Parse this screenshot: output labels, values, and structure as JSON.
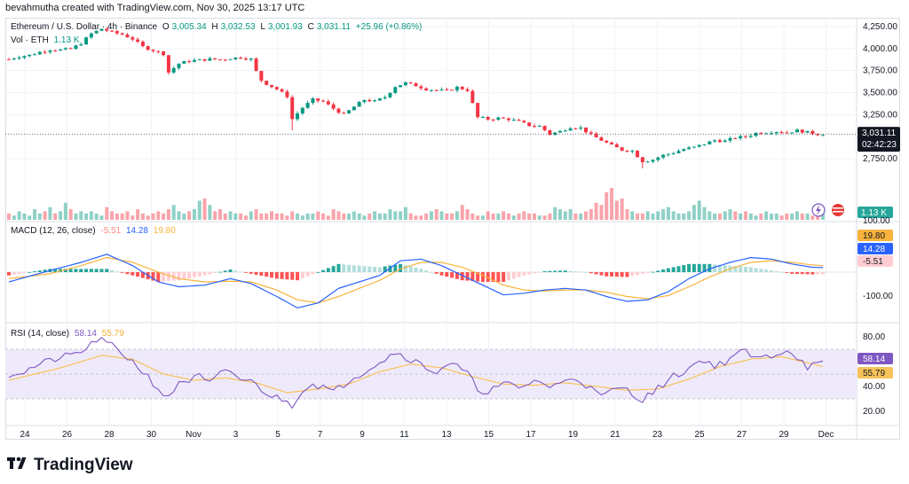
{
  "header": {
    "created_by": "bevahmutha created with TradingView.com, Nov 30, 2025 13:17 UTC"
  },
  "colors": {
    "up": "#089981",
    "down": "#f23645",
    "macd": "#2962ff",
    "signal": "#f7b33b",
    "rsi": "#7e57c2",
    "rsi_ma": "#f7c25a",
    "rsi_band": "#efeafb",
    "hist_up_strong": "#26a69a",
    "hist_up_weak": "#b2dfdb",
    "hist_down_strong": "#ff5252",
    "hist_down_weak": "#ffcdd2",
    "price_label_bg": "#131722",
    "vol_label_bg": "#26a69a"
  },
  "legend": {
    "symbol": "Ethereum / U.S. Dollar · 4h · Binance",
    "o_label": "O",
    "o_value": "3,005.34",
    "h_label": "H",
    "h_value": "3,032.53",
    "l_label": "L",
    "l_value": "3,001.93",
    "c_label": "C",
    "c_value": "3,031.11",
    "change": "+25.96 (+0.86%)",
    "vol_label": "Vol · ETH",
    "vol_value": "1.13 K",
    "macd_label": "MACD (12, 26, close)",
    "macd_hist": "-5.51",
    "macd_line": "14.28",
    "macd_signal": "19.80",
    "rsi_label": "RSI (14, close)",
    "rsi_value": "58.14",
    "rsi_ma": "55.79"
  },
  "price_axis": {
    "ticks": [
      "4,250.00",
      "4,000.00",
      "3,750.00",
      "3,500.00",
      "3,250.00",
      "2,750.00"
    ],
    "current_price": "3,031.11",
    "countdown": "02:42:23",
    "vol_badge": "1.13 K"
  },
  "macd_axis": {
    "ticks": [
      "100.00",
      "-100.00"
    ],
    "signal_badge": "19.80",
    "macd_badge": "14.28",
    "hist_badge": "-5.51"
  },
  "rsi_axis": {
    "ticks": [
      "80.00",
      "40.00",
      "20.00"
    ],
    "rsi_badge": "58.14",
    "ma_badge": "55.79"
  },
  "x_axis": {
    "labels": [
      "24",
      "26",
      "28",
      "30",
      "Nov",
      "3",
      "5",
      "7",
      "9",
      "11",
      "13",
      "15",
      "17",
      "19",
      "21",
      "23",
      "25",
      "27",
      "29",
      "Dec"
    ]
  },
  "chart_data": {
    "type": "candlestick",
    "interval": "4h",
    "price_range": [
      2550,
      4330
    ],
    "price_path": [
      [
        0,
        3880
      ],
      [
        2,
        3910
      ],
      [
        4,
        3925
      ],
      [
        6,
        3960
      ],
      [
        8,
        3990
      ],
      [
        10,
        3985
      ],
      [
        12,
        3995
      ],
      [
        14,
        4060
      ],
      [
        16,
        4170
      ],
      [
        18,
        4225
      ],
      [
        20,
        4185
      ],
      [
        22,
        4160
      ],
      [
        24,
        4110
      ],
      [
        26,
        4020
      ],
      [
        28,
        3980
      ],
      [
        30,
        3940
      ],
      [
        31,
        3730
      ],
      [
        33,
        3830
      ],
      [
        35,
        3860
      ],
      [
        37,
        3870
      ],
      [
        39,
        3880
      ],
      [
        41,
        3875
      ],
      [
        43,
        3890
      ],
      [
        45,
        3900
      ],
      [
        47,
        3880
      ],
      [
        48,
        3740
      ],
      [
        49,
        3640
      ],
      [
        50,
        3600
      ],
      [
        52,
        3540
      ],
      [
        54,
        3460
      ],
      [
        55,
        3200
      ],
      [
        57,
        3330
      ],
      [
        59,
        3420
      ],
      [
        61,
        3400
      ],
      [
        63,
        3320
      ],
      [
        65,
        3250
      ],
      [
        67,
        3340
      ],
      [
        69,
        3420
      ],
      [
        71,
        3400
      ],
      [
        73,
        3450
      ],
      [
        75,
        3570
      ],
      [
        77,
        3610
      ],
      [
        79,
        3580
      ],
      [
        81,
        3540
      ],
      [
        83,
        3530
      ],
      [
        85,
        3520
      ],
      [
        87,
        3560
      ],
      [
        89,
        3530
      ],
      [
        91,
        3220
      ],
      [
        93,
        3200
      ],
      [
        95,
        3210
      ],
      [
        97,
        3200
      ],
      [
        99,
        3170
      ],
      [
        101,
        3130
      ],
      [
        103,
        3120
      ],
      [
        105,
        3030
      ],
      [
        107,
        3060
      ],
      [
        109,
        3110
      ],
      [
        111,
        3100
      ],
      [
        113,
        3020
      ],
      [
        115,
        2960
      ],
      [
        117,
        2900
      ],
      [
        119,
        2850
      ],
      [
        121,
        2840
      ],
      [
        123,
        2720
      ],
      [
        125,
        2740
      ],
      [
        127,
        2790
      ],
      [
        129,
        2820
      ],
      [
        131,
        2860
      ],
      [
        133,
        2880
      ],
      [
        135,
        2920
      ],
      [
        137,
        2960
      ],
      [
        139,
        2950
      ],
      [
        141,
        2990
      ],
      [
        143,
        3000
      ],
      [
        145,
        3040
      ],
      [
        147,
        3050
      ],
      [
        149,
        3060
      ],
      [
        151,
        3050
      ],
      [
        153,
        3070
      ],
      [
        155,
        3050
      ],
      [
        157,
        3030
      ],
      [
        158,
        3031
      ]
    ],
    "volume_profile": [
      3,
      2,
      4,
      3,
      2,
      5,
      3,
      4,
      6,
      3,
      4,
      8,
      5,
      3,
      4,
      3,
      4,
      3,
      2,
      6,
      4,
      3,
      3,
      4,
      2,
      5,
      3,
      2,
      3,
      4,
      3,
      5,
      7,
      4,
      3,
      4,
      5,
      9,
      10,
      7,
      4,
      5,
      3,
      4,
      3,
      3,
      2,
      4,
      5,
      3,
      3,
      4,
      3,
      3,
      2,
      4,
      3,
      2,
      3,
      3,
      4,
      3,
      2,
      5,
      4,
      3,
      3,
      4,
      3,
      2,
      3,
      4,
      3,
      3,
      5,
      4,
      4,
      6,
      3,
      2,
      2,
      3,
      4,
      5,
      4,
      3,
      3,
      4,
      7,
      5,
      3,
      2,
      2,
      4,
      3,
      3,
      4,
      3,
      2,
      3,
      4,
      3,
      3,
      2,
      2,
      3,
      6,
      5,
      4,
      5,
      3,
      3,
      4,
      5,
      8,
      7,
      13,
      15,
      9,
      10,
      5,
      4,
      3,
      3,
      4,
      3,
      4,
      5,
      6,
      4,
      3,
      3,
      4,
      7,
      9,
      6,
      4,
      3,
      3,
      4,
      5,
      4,
      3,
      4,
      3,
      2,
      3,
      4,
      3,
      3,
      2,
      3,
      3,
      4,
      3,
      3,
      2
    ],
    "macd": {
      "range": [
        -150,
        150
      ],
      "macd_path": [
        [
          0,
          -30
        ],
        [
          8,
          5
        ],
        [
          14,
          30
        ],
        [
          19,
          55
        ],
        [
          24,
          20
        ],
        [
          29,
          -30
        ],
        [
          33,
          -45
        ],
        [
          38,
          -40
        ],
        [
          43,
          -20
        ],
        [
          47,
          -35
        ],
        [
          52,
          -75
        ],
        [
          56,
          -110
        ],
        [
          60,
          -95
        ],
        [
          64,
          -50
        ],
        [
          68,
          -30
        ],
        [
          72,
          -10
        ],
        [
          76,
          35
        ],
        [
          80,
          40
        ],
        [
          84,
          20
        ],
        [
          88,
          -10
        ],
        [
          92,
          -40
        ],
        [
          96,
          -70
        ],
        [
          100,
          -65
        ],
        [
          104,
          -55
        ],
        [
          108,
          -50
        ],
        [
          112,
          -55
        ],
        [
          116,
          -75
        ],
        [
          120,
          -90
        ],
        [
          124,
          -85
        ],
        [
          128,
          -60
        ],
        [
          132,
          -20
        ],
        [
          136,
          10
        ],
        [
          140,
          30
        ],
        [
          144,
          45
        ],
        [
          148,
          40
        ],
        [
          152,
          25
        ],
        [
          156,
          15
        ],
        [
          158,
          14
        ]
      ],
      "signal_path": [
        [
          0,
          -20
        ],
        [
          8,
          -5
        ],
        [
          14,
          20
        ],
        [
          19,
          45
        ],
        [
          24,
          30
        ],
        [
          29,
          0
        ],
        [
          33,
          -20
        ],
        [
          38,
          -30
        ],
        [
          43,
          -28
        ],
        [
          47,
          -30
        ],
        [
          52,
          -55
        ],
        [
          56,
          -85
        ],
        [
          60,
          -95
        ],
        [
          64,
          -75
        ],
        [
          68,
          -50
        ],
        [
          72,
          -25
        ],
        [
          76,
          10
        ],
        [
          80,
          30
        ],
        [
          84,
          30
        ],
        [
          88,
          15
        ],
        [
          92,
          -10
        ],
        [
          96,
          -40
        ],
        [
          100,
          -55
        ],
        [
          104,
          -58
        ],
        [
          108,
          -55
        ],
        [
          112,
          -55
        ],
        [
          116,
          -62
        ],
        [
          120,
          -75
        ],
        [
          124,
          -82
        ],
        [
          128,
          -72
        ],
        [
          132,
          -45
        ],
        [
          136,
          -15
        ],
        [
          140,
          10
        ],
        [
          144,
          30
        ],
        [
          148,
          35
        ],
        [
          152,
          30
        ],
        [
          156,
          22
        ],
        [
          158,
          20
        ]
      ]
    },
    "rsi": {
      "range": [
        10,
        90
      ],
      "band": [
        30,
        70
      ],
      "rsi_path": [
        [
          0,
          50
        ],
        [
          3,
          52
        ],
        [
          6,
          58
        ],
        [
          9,
          62
        ],
        [
          12,
          65
        ],
        [
          15,
          70
        ],
        [
          17,
          78
        ],
        [
          19,
          75
        ],
        [
          21,
          70
        ],
        [
          24,
          60
        ],
        [
          27,
          48
        ],
        [
          29,
          38
        ],
        [
          31,
          30
        ],
        [
          33,
          44
        ],
        [
          35,
          45
        ],
        [
          37,
          48
        ],
        [
          39,
          42
        ],
        [
          41,
          50
        ],
        [
          43,
          52
        ],
        [
          45,
          46
        ],
        [
          47,
          44
        ],
        [
          49,
          38
        ],
        [
          51,
          32
        ],
        [
          53,
          30
        ],
        [
          55,
          25
        ],
        [
          57,
          38
        ],
        [
          59,
          42
        ],
        [
          61,
          40
        ],
        [
          63,
          35
        ],
        [
          65,
          42
        ],
        [
          67,
          48
        ],
        [
          69,
          52
        ],
        [
          71,
          58
        ],
        [
          73,
          62
        ],
        [
          75,
          68
        ],
        [
          77,
          64
        ],
        [
          79,
          60
        ],
        [
          81,
          55
        ],
        [
          83,
          52
        ],
        [
          85,
          58
        ],
        [
          87,
          56
        ],
        [
          89,
          50
        ],
        [
          91,
          38
        ],
        [
          93,
          36
        ],
        [
          95,
          40
        ],
        [
          97,
          42
        ],
        [
          99,
          38
        ],
        [
          101,
          43
        ],
        [
          103,
          45
        ],
        [
          105,
          39
        ],
        [
          107,
          42
        ],
        [
          109,
          48
        ],
        [
          111,
          45
        ],
        [
          113,
          38
        ],
        [
          115,
          32
        ],
        [
          117,
          36
        ],
        [
          119,
          40
        ],
        [
          121,
          34
        ],
        [
          123,
          30
        ],
        [
          125,
          35
        ],
        [
          127,
          42
        ],
        [
          129,
          48
        ],
        [
          131,
          52
        ],
        [
          133,
          58
        ],
        [
          135,
          62
        ],
        [
          137,
          56
        ],
        [
          139,
          60
        ],
        [
          141,
          66
        ],
        [
          143,
          68
        ],
        [
          145,
          62
        ],
        [
          147,
          64
        ],
        [
          149,
          66
        ],
        [
          151,
          70
        ],
        [
          153,
          64
        ],
        [
          155,
          56
        ],
        [
          157,
          58
        ],
        [
          158,
          58
        ]
      ],
      "ma_path": [
        [
          0,
          45
        ],
        [
          10,
          55
        ],
        [
          18,
          65
        ],
        [
          24,
          62
        ],
        [
          30,
          50
        ],
        [
          36,
          45
        ],
        [
          42,
          47
        ],
        [
          48,
          43
        ],
        [
          54,
          35
        ],
        [
          60,
          38
        ],
        [
          66,
          42
        ],
        [
          72,
          52
        ],
        [
          78,
          58
        ],
        [
          84,
          55
        ],
        [
          90,
          48
        ],
        [
          96,
          42
        ],
        [
          102,
          41
        ],
        [
          108,
          43
        ],
        [
          114,
          40
        ],
        [
          120,
          37
        ],
        [
          126,
          38
        ],
        [
          132,
          46
        ],
        [
          138,
          56
        ],
        [
          144,
          62
        ],
        [
          150,
          64
        ],
        [
          156,
          58
        ],
        [
          158,
          56
        ]
      ]
    }
  }
}
